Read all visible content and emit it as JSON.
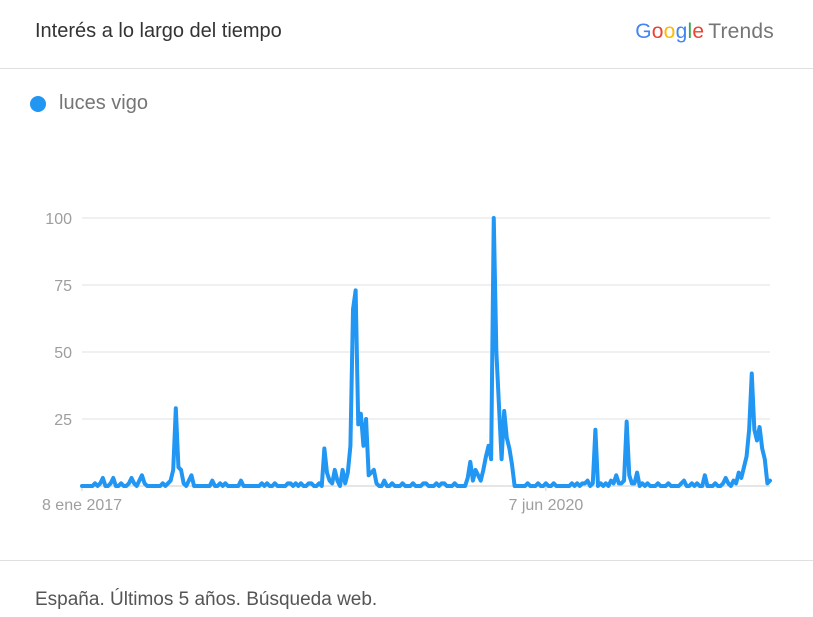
{
  "header": {
    "title": "Interés a lo largo del tiempo",
    "logo_google": [
      "G",
      "o",
      "o",
      "g",
      "l",
      "e"
    ],
    "logo_trends": "Trends"
  },
  "footer": {
    "text": "España. Últimos 5 años. Búsqueda web."
  },
  "colors": {
    "series": "#2196F3",
    "grid": "#e0e0e0",
    "axis": "#cccccc"
  },
  "chart_data": {
    "type": "line",
    "title": "",
    "xlabel": "",
    "ylabel": "",
    "ylim": [
      0,
      100
    ],
    "yticks": [
      25,
      50,
      75,
      100
    ],
    "x_tick_labels": [
      {
        "label": "8 ene 2017",
        "index": 0
      },
      {
        "label": "7 jun 2020",
        "index": 178
      }
    ],
    "grid": true,
    "legend": "top-left",
    "series": [
      {
        "name": "luces vigo",
        "values": [
          0,
          0,
          0,
          0,
          0,
          1,
          0,
          1,
          3,
          0,
          0,
          1,
          3,
          0,
          0,
          1,
          0,
          0,
          1,
          3,
          1,
          0,
          2,
          4,
          1,
          0,
          0,
          0,
          0,
          0,
          0,
          1,
          0,
          1,
          2,
          6,
          29,
          7,
          6,
          1,
          0,
          2,
          4,
          0,
          0,
          0,
          0,
          0,
          0,
          0,
          2,
          0,
          0,
          1,
          0,
          1,
          0,
          0,
          0,
          0,
          0,
          2,
          0,
          0,
          0,
          0,
          0,
          0,
          0,
          1,
          0,
          1,
          0,
          0,
          1,
          0,
          0,
          0,
          0,
          1,
          1,
          0,
          1,
          0,
          1,
          0,
          0,
          1,
          1,
          0,
          0,
          1,
          0,
          14,
          5,
          2,
          1,
          6,
          2,
          0,
          6,
          1,
          5,
          15,
          66,
          73,
          23,
          27,
          15,
          25,
          4,
          5,
          6,
          1,
          0,
          0,
          2,
          0,
          0,
          1,
          0,
          0,
          0,
          1,
          0,
          0,
          0,
          1,
          0,
          0,
          0,
          1,
          1,
          0,
          0,
          0,
          1,
          0,
          1,
          1,
          0,
          0,
          0,
          1,
          0,
          0,
          0,
          0,
          3,
          9,
          2,
          6,
          4,
          2,
          6,
          11,
          15,
          10,
          100,
          50,
          30,
          10,
          28,
          18,
          14,
          8,
          0,
          0,
          0,
          0,
          0,
          1,
          0,
          0,
          0,
          1,
          0,
          0,
          1,
          0,
          0,
          1,
          0,
          0,
          0,
          0,
          0,
          0,
          1,
          0,
          1,
          0,
          1,
          1,
          2,
          0,
          1,
          21,
          0,
          1,
          0,
          1,
          0,
          2,
          1,
          4,
          1,
          1,
          2,
          24,
          4,
          1,
          1,
          5,
          0,
          1,
          0,
          1,
          0,
          0,
          0,
          1,
          0,
          0,
          0,
          1,
          0,
          0,
          0,
          0,
          1,
          2,
          0,
          0,
          1,
          0,
          1,
          0,
          0,
          4,
          0,
          0,
          0,
          1,
          0,
          0,
          1,
          3,
          1,
          0,
          2,
          1,
          5,
          3,
          7,
          11,
          21,
          42,
          21,
          17,
          22,
          14,
          10,
          1,
          2
        ]
      }
    ]
  }
}
